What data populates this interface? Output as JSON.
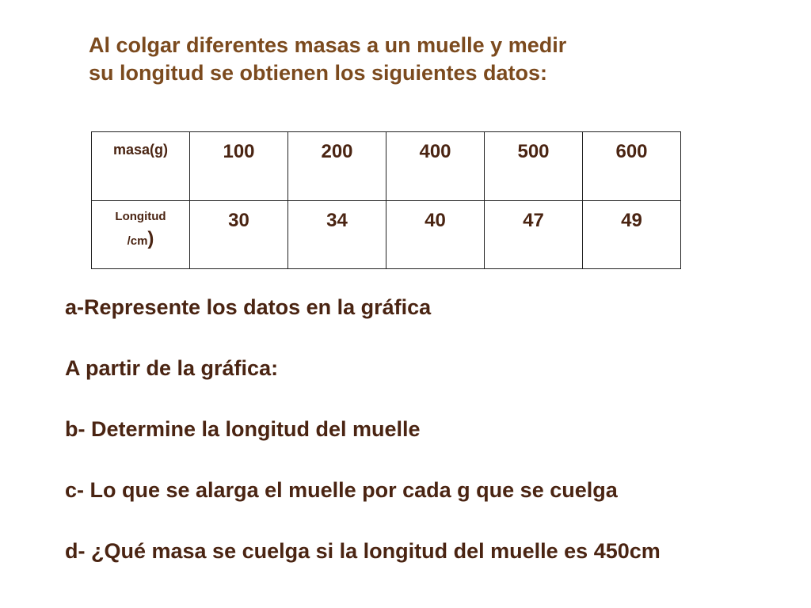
{
  "intro": {
    "line1": "Al colgar diferentes masas a un muelle y medir",
    "line2": "su longitud se obtienen los siguientes datos:"
  },
  "table": {
    "row_headers": {
      "mass": "masa(g)",
      "length_line1": "Longitud",
      "length_line2": "/cm",
      "length_paren": ")"
    },
    "mass_values": [
      "100",
      "200",
      "400",
      "500",
      "600"
    ],
    "length_values": [
      "30",
      "34",
      "40",
      "47",
      "49"
    ]
  },
  "questions": [
    "a-Represente los datos en la gráfica",
    "A partir de la gráfica:",
    "b- Determine la longitud del muelle",
    "c- Lo que se alarga el muelle por cada g que se cuelga",
    "d- ¿Qué masa se cuelga si la longitud del muelle es 450cm"
  ],
  "colors": {
    "intro_text": "#7b4a1e",
    "body_text": "#4a2412",
    "table_border": "#222222"
  }
}
